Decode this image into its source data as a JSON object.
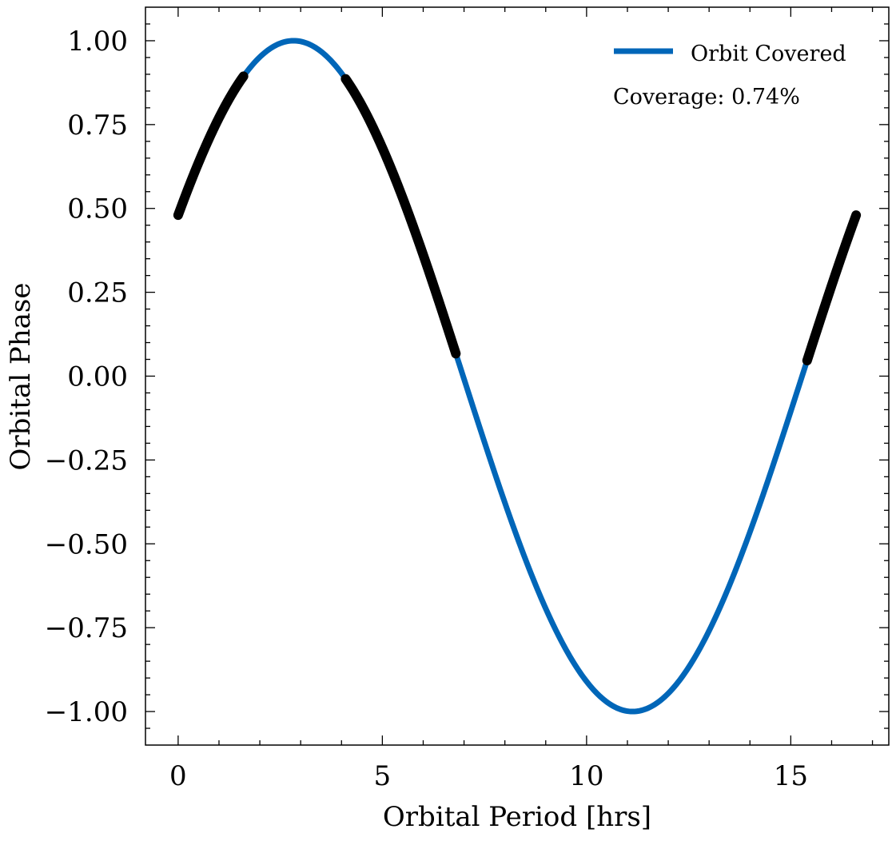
{
  "chart_data": {
    "type": "line",
    "xlabel": "Orbital Period [hrs]",
    "ylabel": "Orbital Phase",
    "xlim": [
      -0.8,
      17.4
    ],
    "ylim": [
      -1.1,
      1.1
    ],
    "x_ticks": [
      0,
      5,
      10,
      15
    ],
    "x_tick_labels": [
      "0",
      "5",
      "10",
      "15"
    ],
    "y_ticks": [
      1.0,
      0.75,
      0.5,
      0.25,
      0.0,
      -0.25,
      -0.5,
      -0.75,
      -1.0
    ],
    "y_tick_labels": [
      "1.00",
      "0.75",
      "0.50",
      "0.25",
      "0.00",
      "−0.25",
      "−0.50",
      "−0.75",
      "−1.00"
    ],
    "series": [
      {
        "name": "Orbit Covered",
        "color": "#0066b8",
        "function": "sine",
        "x_range": [
          0,
          16.6
        ],
        "period_hrs": 16.6,
        "phase_at_zero": 0.48,
        "peak": {
          "x": 2.8,
          "y": 1.0
        },
        "trough": {
          "x": 11.1,
          "y": -1.0
        }
      },
      {
        "name": "",
        "color": "#000000",
        "marker": "point",
        "covered_ranges": [
          [
            0.0,
            1.6
          ],
          [
            4.1,
            6.8
          ],
          [
            15.4,
            16.6
          ]
        ]
      }
    ],
    "legend": {
      "position": "top-right",
      "entries": [
        "Orbit Covered"
      ]
    },
    "annotation": "Coverage: 0.74%",
    "grid": false
  }
}
